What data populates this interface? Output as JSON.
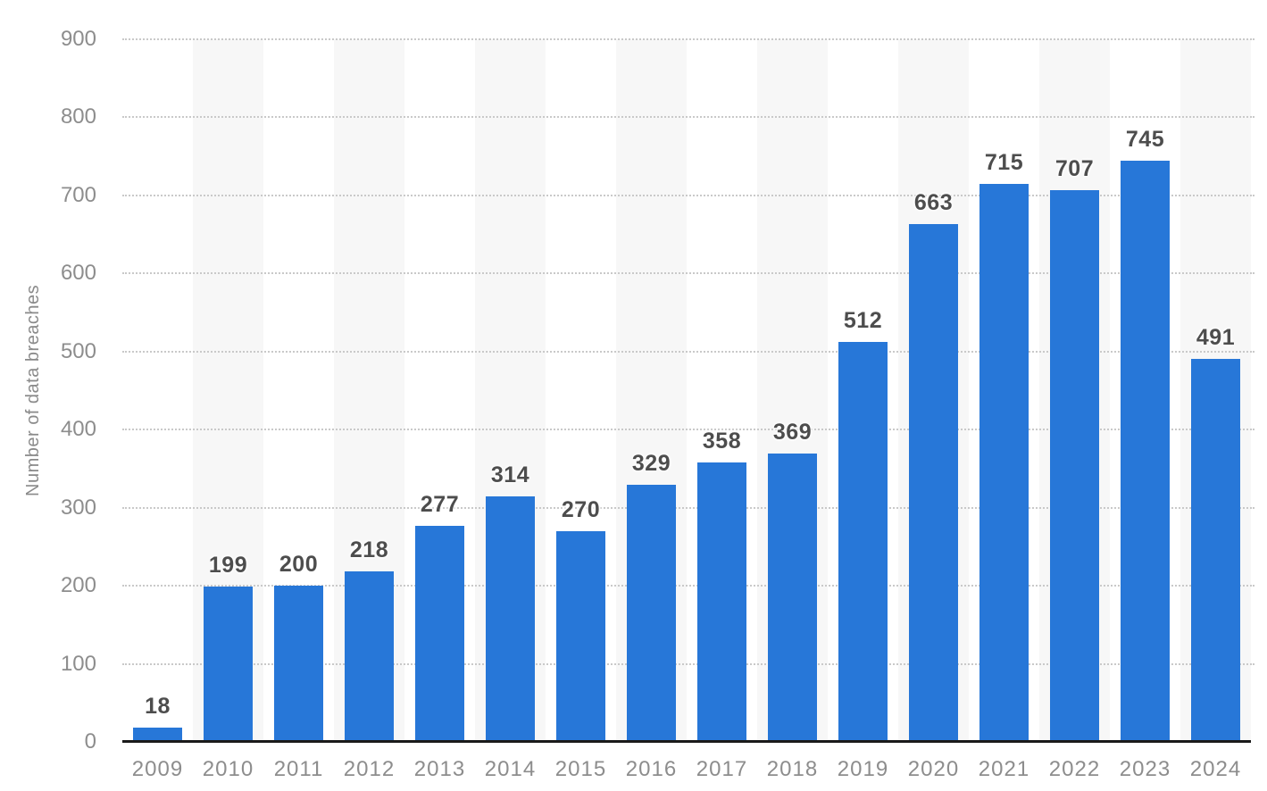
{
  "chart_data": {
    "type": "bar",
    "title": "",
    "xlabel": "",
    "ylabel": "Number of data breaches",
    "categories": [
      "2009",
      "2010",
      "2011",
      "2012",
      "2013",
      "2014",
      "2015",
      "2016",
      "2017",
      "2018",
      "2019",
      "2020",
      "2021",
      "2022",
      "2023",
      "2024"
    ],
    "values": [
      18,
      199,
      200,
      218,
      277,
      314,
      270,
      329,
      358,
      369,
      512,
      663,
      715,
      707,
      745,
      491
    ],
    "ylim": [
      0,
      900
    ],
    "yticks": [
      0,
      100,
      200,
      300,
      400,
      500,
      600,
      700,
      800,
      900
    ],
    "grid": "horizontal-dotted",
    "legend_position": "none",
    "value_labels": "above-bars",
    "column_bands": "alternating-even-years",
    "colors": {
      "bar": "#2777d8",
      "column_band": "#f7f7f7",
      "gridline": "#c9c9c9",
      "axis_line": "#1a1a1a",
      "tick_text": "#8d8d8d",
      "value_label": "#4d4d4d",
      "y_title_text": "#8a8a8a",
      "background": "#ffffff"
    }
  }
}
